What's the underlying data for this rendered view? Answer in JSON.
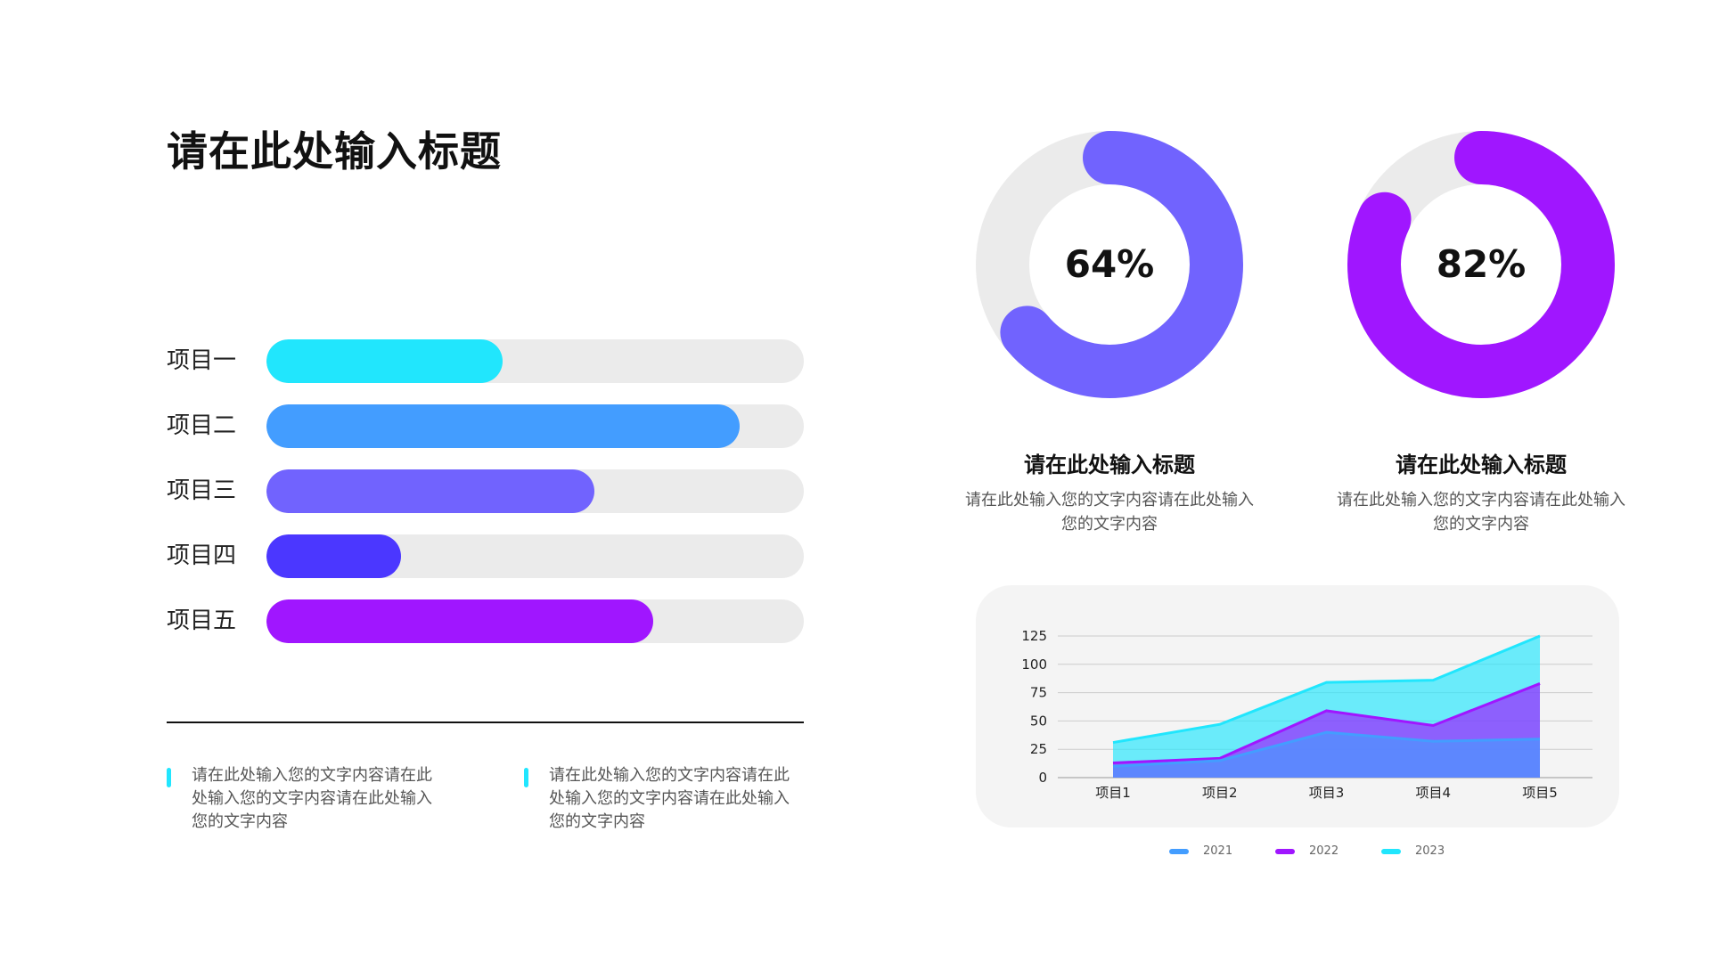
{
  "title": "请在此处输入标题",
  "bars": [
    {
      "label": "项目一",
      "value": 44,
      "color": "#21e6fd"
    },
    {
      "label": "项目二",
      "value": 88,
      "color": "#439dff"
    },
    {
      "label": "项目三",
      "value": 61,
      "color": "#7163fe"
    },
    {
      "label": "项目四",
      "value": 25,
      "color": "#4b37ff"
    },
    {
      "label": "项目五",
      "value": 72,
      "color": "#a016ff"
    }
  ],
  "notes": [
    {
      "text": "请在此处输入您的文字内容请在此处输入您的文字内容请在此处输入您的文字内容"
    },
    {
      "text": "请在此处输入您的文字内容请在此处输入您的文字内容请在此处输入您的文字内容"
    }
  ],
  "donuts": [
    {
      "percent": "64%",
      "value": 64,
      "color": "#7163fe",
      "title": "请在此处输入标题",
      "desc": "请在此处输入您的文字内容请在此处输入您的文字内容"
    },
    {
      "percent": "82%",
      "value": 82,
      "color": "#a016ff",
      "title": "请在此处输入标题",
      "desc": "请在此处输入您的文字内容请在此处输入您的文字内容"
    }
  ],
  "chart_data": {
    "type": "area",
    "stacked": false,
    "categories": [
      "项目1",
      "项目2",
      "项目3",
      "项目4",
      "项目5"
    ],
    "ylim": [
      0,
      125
    ],
    "yticks": [
      0,
      25,
      50,
      75,
      100,
      125
    ],
    "grid": true,
    "legend_position": "bottom",
    "series": [
      {
        "name": "2023",
        "values": [
          31,
          47,
          84,
          86,
          125
        ],
        "color": "#21e6fd"
      },
      {
        "name": "2022",
        "values": [
          13,
          17,
          59,
          46,
          83
        ],
        "color": "#a016ff"
      },
      {
        "name": "2021",
        "values": [
          10,
          15,
          40,
          32,
          34
        ],
        "color": "#439dff"
      }
    ],
    "legend": [
      {
        "name": "2021",
        "color": "#439dff"
      },
      {
        "name": "2022",
        "color": "#a016ff"
      },
      {
        "name": "2023",
        "color": "#21e6fd"
      }
    ]
  }
}
